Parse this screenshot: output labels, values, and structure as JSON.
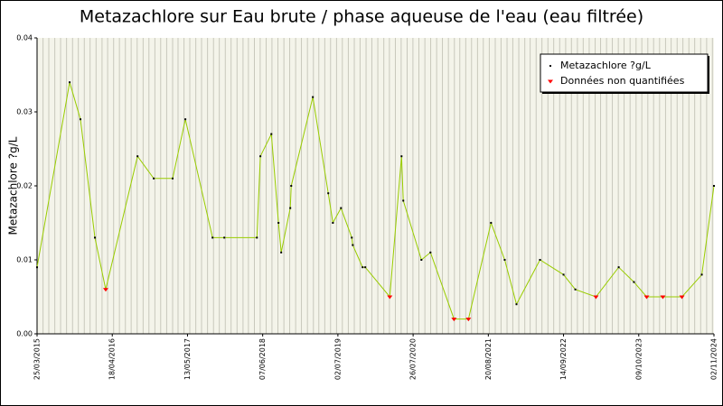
{
  "chart_data": {
    "type": "line",
    "title": "Metazachlore sur Eau brute / phase aqueuse de l'eau (eau filtrée)",
    "y_label": "Metazachlore ?g/L",
    "x": [
      "2015-03-25",
      "2015-09-10",
      "2015-11-05",
      "2016-01-19",
      "2016-03-15",
      "2016-08-27",
      "2016-11-19",
      "2017-02-25",
      "2017-05-02",
      "2017-09-20",
      "2017-11-20",
      "2018-05-08",
      "2018-05-26",
      "2018-07-22",
      "2018-08-28",
      "2018-09-11",
      "2018-10-28",
      "2018-11-02",
      "2019-02-22",
      "2019-05-13",
      "2019-06-06",
      "2019-07-18",
      "2019-09-12",
      "2019-09-17",
      "2019-11-07",
      "2019-11-21",
      "2020-03-27",
      "2020-05-27",
      "2020-06-05",
      "2020-09-07",
      "2020-10-24",
      "2021-02-23",
      "2021-05-09",
      "2021-09-03",
      "2021-11-13",
      "2022-01-13",
      "2022-05-15",
      "2022-09-14",
      "2022-11-14",
      "2023-03-01",
      "2023-06-27",
      "2023-09-14",
      "2023-11-19",
      "2024-02-11",
      "2024-05-20",
      "2024-08-31",
      "2024-11-02"
    ],
    "series": [
      {
        "name": "Metazachlore ?g/L",
        "color": "#000000",
        "line_color": "#99cc00",
        "values": [
          0.009,
          0.034,
          0.029,
          0.013,
          0.006,
          0.024,
          0.021,
          0.021,
          0.029,
          0.013,
          0.013,
          0.013,
          0.024,
          0.027,
          0.015,
          0.011,
          0.017,
          0.02,
          0.032,
          0.019,
          0.015,
          0.017,
          0.013,
          0.012,
          0.009,
          0.009,
          0.005,
          0.024,
          0.018,
          0.01,
          0.011,
          0.002,
          0.002,
          0.015,
          0.01,
          0.004,
          0.01,
          0.008,
          0.006,
          0.005,
          0.009,
          0.007,
          0.005,
          0.005,
          0.005,
          0.008,
          0.02
        ]
      },
      {
        "name": "Données non quantifiées",
        "color": "#ff0000",
        "values": [
          null,
          null,
          null,
          null,
          0.006,
          null,
          null,
          null,
          null,
          null,
          null,
          null,
          null,
          null,
          null,
          null,
          null,
          null,
          null,
          null,
          null,
          null,
          null,
          null,
          null,
          null,
          0.005,
          null,
          null,
          null,
          null,
          0.002,
          0.002,
          null,
          null,
          null,
          null,
          null,
          null,
          0.005,
          null,
          null,
          0.005,
          0.005,
          0.005,
          null,
          null
        ]
      }
    ],
    "xlim": [
      "2015-03-25",
      "2024-11-02"
    ],
    "xticks": [
      {
        "value": "2015-03-25",
        "label": "25/03/2015"
      },
      {
        "value": "2016-04-18",
        "label": "18/04/2016"
      },
      {
        "value": "2017-05-13",
        "label": "13/05/2017"
      },
      {
        "value": "2018-06-07",
        "label": "07/06/2018"
      },
      {
        "value": "2019-07-02",
        "label": "02/07/2019"
      },
      {
        "value": "2020-07-26",
        "label": "26/07/2020"
      },
      {
        "value": "2021-08-20",
        "label": "20/08/2021"
      },
      {
        "value": "2022-09-14",
        "label": "14/09/2022"
      },
      {
        "value": "2023-10-09",
        "label": "09/10/2023"
      },
      {
        "value": "2024-11-02",
        "label": "02/11/2024"
      }
    ],
    "ylim": [
      0,
      0.04
    ],
    "yticks": [
      {
        "value": 0,
        "label": "0.00"
      },
      0.01,
      0.02,
      0.03,
      0.04
    ],
    "grid": "monthly-vertical",
    "legend": "top-right"
  }
}
